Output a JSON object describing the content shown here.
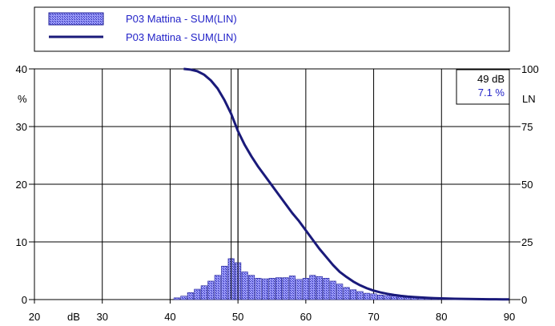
{
  "legend": {
    "items": [
      {
        "label": "P03 Mattina - SUM(LIN)",
        "kind": "bars"
      },
      {
        "label": "P03 Mattina - SUM(LIN)",
        "kind": "line"
      }
    ]
  },
  "cursor": {
    "db_label": "49 dB",
    "pct_label": "7.1 %",
    "x_value": 49
  },
  "colors": {
    "bar_fill": "#6e6ef0",
    "bar_stroke": "#1e1e96",
    "line": "#1a1a7a",
    "text_blue": "#2323c8",
    "grid": "#000000"
  },
  "chart_data": {
    "type": "bar",
    "xlabel": "dB",
    "ylabel_left": "%",
    "ylabel_right": "LN",
    "xlim": [
      20,
      90
    ],
    "ylim_left": [
      0,
      40
    ],
    "ylim_right": [
      0,
      100
    ],
    "x_ticks": [
      "20",
      "30",
      "40",
      "50",
      "60",
      "70",
      "80",
      "90"
    ],
    "y_left_ticks": [
      "0",
      "10",
      "20",
      "30",
      "40"
    ],
    "y_right_ticks": [
      "0",
      "25",
      "50",
      "75",
      "100"
    ],
    "grid": true,
    "bin_width": 1,
    "series": [
      {
        "name": "P03 Mattina - SUM(LIN)",
        "type": "bar",
        "axis": "left",
        "x": [
          41,
          42,
          43,
          44,
          45,
          46,
          47,
          48,
          49,
          50,
          51,
          52,
          53,
          54,
          55,
          56,
          57,
          58,
          59,
          60,
          61,
          62,
          63,
          64,
          65,
          66,
          67,
          68,
          69,
          70,
          71,
          72,
          73,
          74,
          75,
          76,
          77,
          78,
          79,
          80,
          81,
          82,
          83,
          84,
          85,
          86,
          87,
          88,
          89
        ],
        "values": [
          0.3,
          0.6,
          1.2,
          1.8,
          2.4,
          3.2,
          4.2,
          5.8,
          7.1,
          6.4,
          4.8,
          4.2,
          3.7,
          3.6,
          3.7,
          3.8,
          3.8,
          4.1,
          3.5,
          3.7,
          4.2,
          4.0,
          3.7,
          3.2,
          2.7,
          2.1,
          1.7,
          1.4,
          1.1,
          1.0,
          0.8,
          0.7,
          0.6,
          0.5,
          0.45,
          0.4,
          0.35,
          0.3,
          0.25,
          0.2,
          0.18,
          0.15,
          0.12,
          0.1,
          0.08,
          0.07,
          0.06,
          0.05,
          0.04
        ]
      },
      {
        "name": "P03 Mattina - SUM(LIN)",
        "type": "line",
        "axis": "right",
        "x": [
          42,
          43,
          44,
          45,
          46,
          47,
          48,
          49,
          50,
          51,
          52,
          53,
          54,
          55,
          56,
          57,
          58,
          59,
          60,
          61,
          62,
          63,
          64,
          65,
          66,
          67,
          68,
          69,
          70,
          71,
          72,
          73,
          74,
          75,
          76,
          77,
          78,
          79,
          80,
          81,
          82,
          83,
          84,
          85,
          86,
          87,
          88,
          89,
          90
        ],
        "values": [
          100,
          99.7,
          99,
          97.5,
          95,
          91.5,
          86.5,
          80.5,
          73,
          67,
          62,
          57.5,
          53.5,
          49.5,
          45.5,
          41.5,
          37.5,
          34,
          30,
          26,
          22,
          18.5,
          15,
          12,
          9.8,
          7.8,
          6.2,
          4.9,
          3.9,
          3.1,
          2.5,
          2,
          1.6,
          1.3,
          1.1,
          0.9,
          0.75,
          0.6,
          0.5,
          0.42,
          0.35,
          0.3,
          0.25,
          0.2,
          0.17,
          0.14,
          0.12,
          0.1,
          0.08
        ]
      }
    ]
  }
}
